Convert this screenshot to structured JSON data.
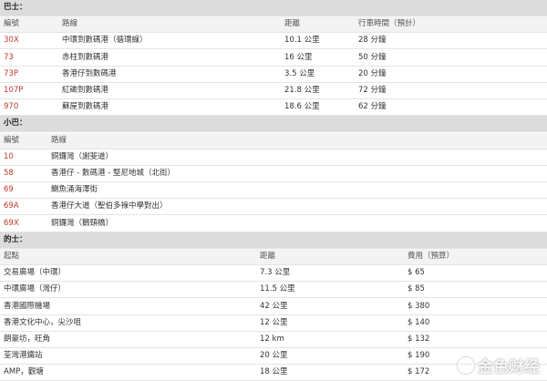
{
  "sections": [
    {
      "title": "巴士：",
      "headers": [
        "編號",
        "路線",
        "距離",
        "行車時間（預計）"
      ],
      "rows": [
        [
          "30X",
          "中環到數碼港（循環線）",
          "10.1 公里",
          "28 分鐘"
        ],
        [
          "73",
          "赤柱到數碼港",
          "16 公里",
          "50 分鐘"
        ],
        [
          "73P",
          "香港仔到數碼港",
          "3.5 公里",
          "20 分鐘"
        ],
        [
          "107P",
          "紅磡到數碼港",
          "21.8 公里",
          "72 分鐘"
        ],
        [
          "970",
          "蘇屋到數碼港",
          "18.6 公里",
          "62 分鐘"
        ]
      ]
    },
    {
      "title": "小巴：",
      "headers": [
        "編號",
        "路線"
      ],
      "rows": [
        [
          "10",
          "銅鑼灣（謝斐道）"
        ],
        [
          "58",
          "香港仔 - 數碼港 - 堅尼地城（北街）"
        ],
        [
          "69",
          "鰂魚涌海澤街"
        ],
        [
          "69A",
          "香港仔大道（聖伯多祿中學對出）"
        ],
        [
          "69X",
          "銅鑼灣（鵝頸橋）"
        ]
      ]
    },
    {
      "title": "的士：",
      "headers": [
        "起點",
        "距離",
        "費用（預算）"
      ],
      "rows": [
        [
          "交易廣場（中環）",
          "7.3 公里",
          "$ 65"
        ],
        [
          "中環廣場（灣仔）",
          "11.5 公里",
          "$ 85"
        ],
        [
          "香港國際機場",
          "42 公里",
          "$ 380"
        ],
        [
          "香港文化中心，尖沙咀",
          "12 公里",
          "$ 140"
        ],
        [
          "朗豪坊，旺角",
          "12 km",
          "$ 132"
        ],
        [
          "荃灣港鐵站",
          "20 公里",
          "$ 190"
        ],
        [
          "AMP，觀塘",
          "18 公里",
          "$ 172"
        ]
      ]
    }
  ],
  "watermark": "金色财经"
}
